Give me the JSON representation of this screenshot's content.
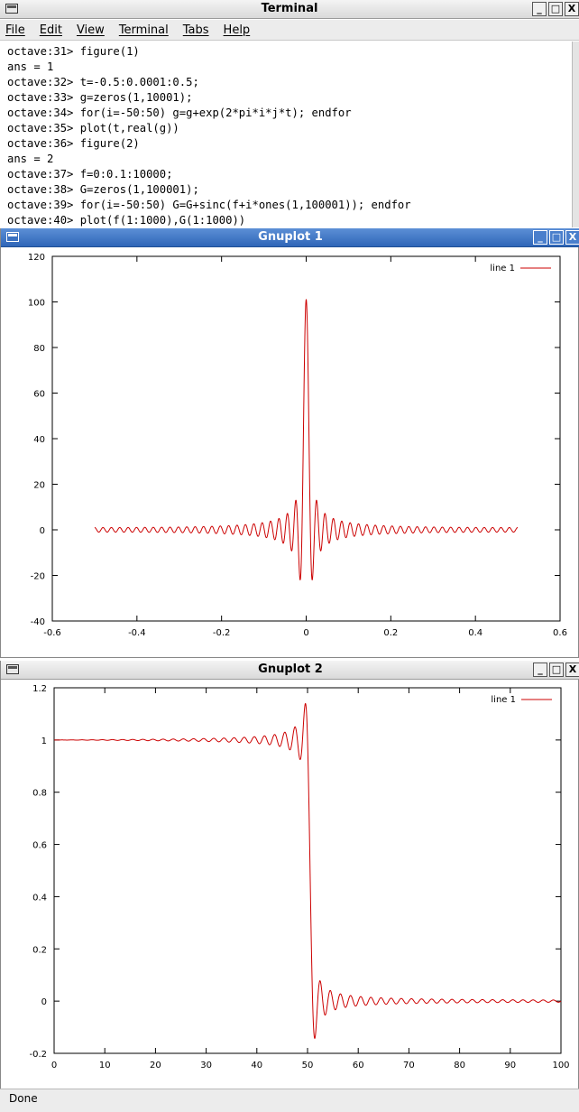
{
  "terminal": {
    "title": "Terminal",
    "menu": [
      "File",
      "Edit",
      "View",
      "Terminal",
      "Tabs",
      "Help"
    ],
    "lines": [
      "octave:31> figure(1)",
      "ans = 1",
      "octave:32> t=-0.5:0.0001:0.5;",
      "octave:33> g=zeros(1,10001);",
      "octave:34> for(i=-50:50) g=g+exp(2*pi*i*j*t); endfor",
      "octave:35> plot(t,real(g))",
      "octave:36> figure(2)",
      "ans = 2",
      "octave:37> f=0:0.1:10000;",
      "octave:38> G=zeros(1,100001);",
      "octave:39> for(i=-50:50) G=G+sinc(f+i*ones(1,100001)); endfor",
      "octave:40> plot(f(1:1000),G(1:1000))"
    ]
  },
  "window_buttons": [
    "_",
    "□",
    "X"
  ],
  "gnuplot1": {
    "title": "Gnuplot 1"
  },
  "gnuplot2": {
    "title": "Gnuplot 2"
  },
  "status": {
    "text": "Done"
  },
  "colors": {
    "line": "#cc0000",
    "title_blue": "#3a70c0"
  },
  "chart_data": [
    {
      "type": "line",
      "title": "",
      "xlabel": "",
      "ylabel": "",
      "xlim": [
        -0.6,
        0.6
      ],
      "ylim": [
        -40,
        120
      ],
      "xticks": [
        -0.6,
        -0.4,
        -0.2,
        0,
        0.2,
        0.4,
        0.6
      ],
      "yticks": [
        -40,
        -20,
        0,
        20,
        40,
        60,
        80,
        100,
        120
      ],
      "xtick_labels": [
        "-0.6",
        "-0.4",
        "-0.2",
        "0",
        "0.2",
        "0.4",
        "0.6"
      ],
      "ytick_labels": [
        "-40",
        "-20",
        "0",
        "20",
        "40",
        "60",
        "80",
        "100",
        "120"
      ],
      "grid": false,
      "legend": "top-right",
      "series": [
        {
          "name": "line 1",
          "function": "sum_{i=-50}^{50} cos(2*pi*i*t)",
          "x_range": [
            -0.5,
            0.5
          ],
          "peak": 101,
          "min": -22
        }
      ]
    },
    {
      "type": "line",
      "title": "",
      "xlabel": "",
      "ylabel": "",
      "xlim": [
        0,
        100
      ],
      "ylim": [
        -0.2,
        1.2
      ],
      "xticks": [
        0,
        10,
        20,
        30,
        40,
        50,
        60,
        70,
        80,
        90,
        100
      ],
      "yticks": [
        -0.2,
        0,
        0.2,
        0.4,
        0.6,
        0.8,
        1,
        1.2
      ],
      "xtick_labels": [
        "0",
        "10",
        "20",
        "30",
        "40",
        "50",
        "60",
        "70",
        "80",
        "90",
        "100"
      ],
      "ytick_labels": [
        "-0.2",
        "0",
        "0.2",
        "0.4",
        "0.6",
        "0.8",
        "1",
        "1.2"
      ],
      "grid": false,
      "legend": "top-right",
      "series": [
        {
          "name": "line 1",
          "function": "sum_{i=-50}^{50} sinc(f+i)",
          "x_range": [
            0,
            100
          ],
          "max": 1.14,
          "min": -0.14
        }
      ]
    }
  ]
}
